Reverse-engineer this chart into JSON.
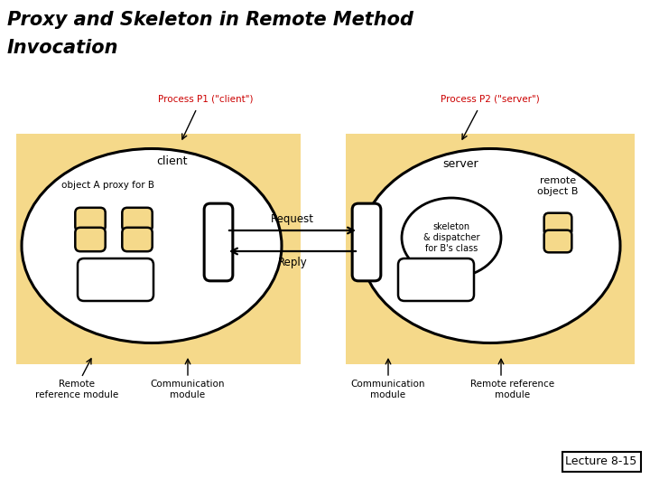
{
  "title_line1": "Proxy and Skeleton in Remote Method",
  "title_line2": "Invocation",
  "title_fontsize": 15,
  "title_color": "#000000",
  "process1_label": "Process P1 (\"client\")",
  "process2_label": "Process P2 (\"server\")",
  "process_label_color": "#cc0000",
  "bg_color": "#f5d98a",
  "request_label": "Request",
  "reply_label": "Reply",
  "client_label": "client",
  "server_label": "server",
  "objA_label": "object A proxy for B",
  "skeleton_label": "skeleton\n& dispatcher\nfor B's class",
  "remote_obj_label": "remote\nobject B",
  "left_remote_ref": "Remote\nreference module",
  "left_comm": "Communication\nmodule",
  "right_comm": "Communication\nmodule",
  "right_remote_ref": "Remote reference\nmodule",
  "lecture_label": "Lecture 8-15",
  "white": "#ffffff",
  "black": "#000000"
}
